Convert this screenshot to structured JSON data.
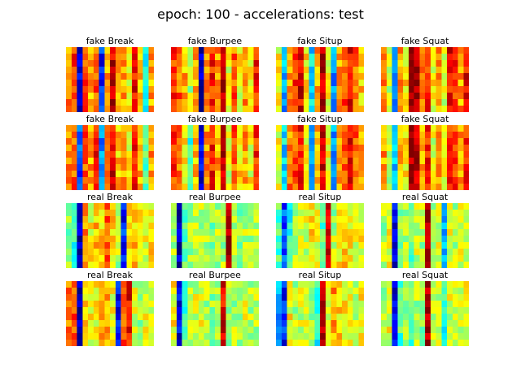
{
  "suptitle": "epoch: 100 - accelerations: test",
  "chart_data": {
    "type": "heatmap",
    "colormap": "jet",
    "title": "epoch: 100 - accelerations: test",
    "grid": false,
    "panels": [
      {
        "label": "fake Break",
        "column_colors": [
          0.75,
          0.82,
          0.12,
          0.8,
          0.7,
          0.8,
          0.15,
          0.72,
          0.92,
          0.68,
          0.72,
          0.6,
          0.88,
          0.7,
          0.4,
          0.72
        ]
      },
      {
        "label": "fake Burpee",
        "column_colors": [
          0.82,
          0.78,
          0.7,
          0.55,
          0.7,
          0.05,
          0.72,
          0.85,
          0.72,
          0.98,
          0.6,
          0.78,
          0.62,
          0.72,
          0.62,
          0.85
        ]
      },
      {
        "label": "fake Situp",
        "column_colors": [
          0.62,
          0.3,
          0.75,
          0.82,
          0.9,
          0.65,
          0.35,
          0.72,
          0.95,
          0.6,
          0.25,
          0.72,
          0.8,
          0.88,
          0.78,
          0.68
        ]
      },
      {
        "label": "fake Squat",
        "column_colors": [
          0.72,
          0.55,
          0.3,
          0.72,
          0.65,
          0.98,
          0.98,
          0.72,
          0.85,
          0.62,
          0.74,
          0.6,
          0.88,
          0.85,
          0.72,
          0.88
        ]
      },
      {
        "label": "fake Break",
        "column_colors": [
          0.75,
          0.78,
          0.2,
          0.8,
          0.72,
          0.85,
          0.25,
          0.72,
          0.9,
          0.68,
          0.72,
          0.62,
          0.85,
          0.7,
          0.45,
          0.72
        ]
      },
      {
        "label": "fake Burpee",
        "column_colors": [
          0.82,
          0.78,
          0.62,
          0.4,
          0.7,
          0.1,
          0.72,
          0.85,
          0.72,
          0.95,
          0.6,
          0.78,
          0.65,
          0.72,
          0.62,
          0.85
        ]
      },
      {
        "label": "fake Situp",
        "column_colors": [
          0.62,
          0.35,
          0.75,
          0.8,
          0.85,
          0.6,
          0.3,
          0.72,
          0.92,
          0.6,
          0.3,
          0.72,
          0.8,
          0.9,
          0.8,
          0.7
        ]
      },
      {
        "label": "fake Squat",
        "column_colors": [
          0.72,
          0.55,
          0.3,
          0.72,
          0.65,
          0.98,
          0.95,
          0.72,
          0.85,
          0.6,
          0.72,
          0.6,
          0.85,
          0.82,
          0.72,
          0.85
        ]
      },
      {
        "label": "real Break",
        "column_colors": [
          0.5,
          0.42,
          0.05,
          0.72,
          0.62,
          0.68,
          0.66,
          0.78,
          0.65,
          0.55,
          0.15,
          0.62,
          0.68,
          0.62,
          0.6,
          0.65
        ]
      },
      {
        "label": "real Burpee",
        "column_colors": [
          0.55,
          0.05,
          0.48,
          0.55,
          0.58,
          0.55,
          0.55,
          0.5,
          0.55,
          0.55,
          0.98,
          0.55,
          0.52,
          0.55,
          0.55,
          0.55
        ]
      },
      {
        "label": "real Situp",
        "column_colors": [
          0.45,
          0.2,
          0.4,
          0.55,
          0.62,
          0.58,
          0.65,
          0.6,
          0.45,
          0.9,
          0.55,
          0.62,
          0.68,
          0.62,
          0.6,
          0.62
        ]
      },
      {
        "label": "real Squat",
        "column_colors": [
          0.55,
          0.6,
          0.1,
          0.5,
          0.55,
          0.45,
          0.58,
          0.55,
          0.98,
          0.52,
          0.58,
          0.3,
          0.6,
          0.55,
          0.58,
          0.6
        ]
      },
      {
        "label": "real Break",
        "column_colors": [
          0.75,
          0.8,
          0.05,
          0.65,
          0.62,
          0.62,
          0.68,
          0.72,
          0.62,
          0.15,
          0.78,
          0.88,
          0.58,
          0.55,
          0.6,
          0.58
        ]
      },
      {
        "label": "real Burpee",
        "column_colors": [
          0.62,
          0.1,
          0.45,
          0.55,
          0.58,
          0.6,
          0.55,
          0.52,
          0.55,
          0.9,
          0.55,
          0.55,
          0.55,
          0.58,
          0.55,
          0.55
        ]
      },
      {
        "label": "real Situp",
        "column_colors": [
          0.3,
          0.15,
          0.62,
          0.55,
          0.58,
          0.6,
          0.55,
          0.4,
          0.95,
          0.55,
          0.72,
          0.65,
          0.62,
          0.6,
          0.58,
          0.62
        ]
      },
      {
        "label": "real Squat",
        "column_colors": [
          0.55,
          0.6,
          0.1,
          0.45,
          0.55,
          0.45,
          0.55,
          0.52,
          0.98,
          0.55,
          0.58,
          0.4,
          0.58,
          0.55,
          0.58,
          0.6
        ]
      }
    ]
  }
}
